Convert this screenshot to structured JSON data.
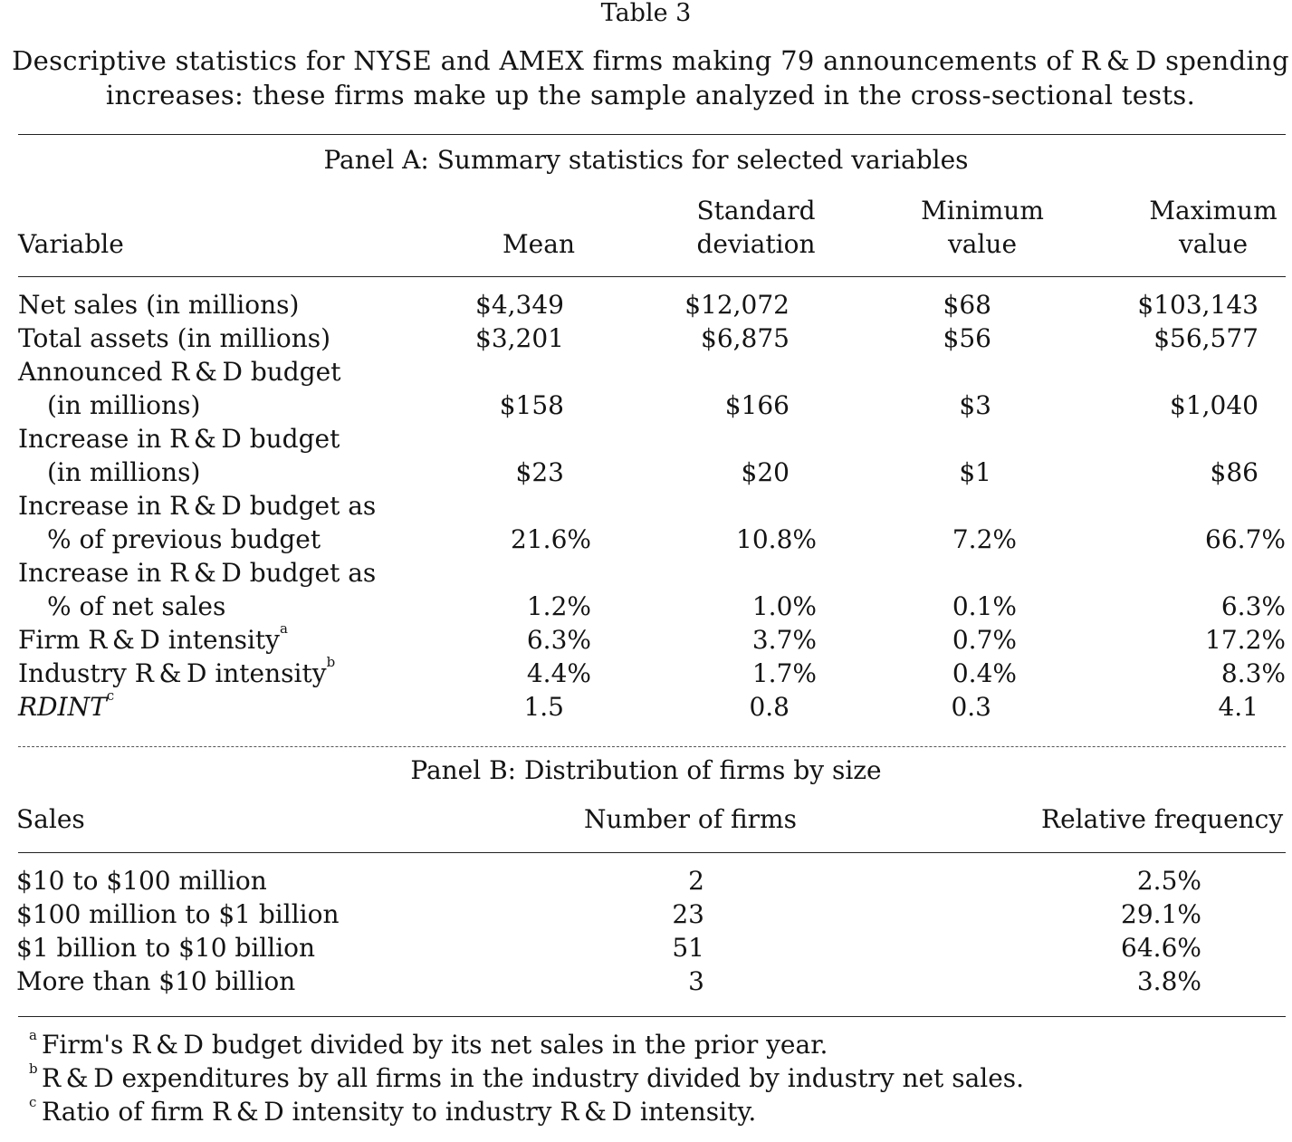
{
  "table_number": "Table 3",
  "caption_line1": "Descriptive statistics for NYSE and AMEX firms making 79 announcements of R & D spending",
  "caption_line2": "increases: these firms make up the sample analyzed in the cross-sectional tests.",
  "panel_a": {
    "title": "Panel A: Summary statistics for selected variables",
    "headers": {
      "variable": "Variable",
      "mean": "Mean",
      "sd_line1": "Standard",
      "sd_line2": "deviation",
      "min_line1": "Minimum",
      "min_line2": "value",
      "max_line1": "Maximum",
      "max_line2": "value"
    },
    "rows": [
      {
        "label": "Net sales (in millions)",
        "mean": "$4,349",
        "sd": "$12,072",
        "min": "$68",
        "max": "$103,143"
      },
      {
        "label": "Total assets (in millions)",
        "mean": "$3,201",
        "sd": "$6,875",
        "min": "$56",
        "max": "$56,577"
      },
      {
        "label": "Announced R & D budget",
        "label2": "(in millions)",
        "mean": "$158",
        "sd": "$166",
        "min": "$3",
        "max": "$1,040"
      },
      {
        "label": "Increase in R & D budget",
        "label2": "(in millions)",
        "mean": "$23",
        "sd": "$20",
        "min": "$1",
        "max": "$86"
      },
      {
        "label": "Increase in R & D budget as",
        "label2": "% of previous budget",
        "mean": "21.6%",
        "sd": "10.8%",
        "min": "7.2%",
        "max": "66.7%"
      },
      {
        "label": "Increase in R & D budget as",
        "label2": "% of net sales",
        "mean": "1.2%",
        "sd": "1.0%",
        "min": "0.1%",
        "max": "6.3%"
      },
      {
        "label": "Firm R & D intensity",
        "sup": "a",
        "mean": "6.3%",
        "sd": "3.7%",
        "min": "0.7%",
        "max": "17.2%"
      },
      {
        "label": "Industry R & D intensity",
        "sup": "b",
        "mean": "4.4%",
        "sd": "1.7%",
        "min": "0.4%",
        "max": "8.3%"
      },
      {
        "label": "RDINT",
        "sup": "c",
        "mean": "1.5",
        "sd": "0.8",
        "min": "0.3",
        "max": "4.1"
      }
    ]
  },
  "panel_b": {
    "title": "Panel B: Distribution of firms by size",
    "headers": {
      "sales": "Sales",
      "number": "Number of firms",
      "frequency": "Relative frequency"
    },
    "rows": [
      {
        "sales": "$10 to $100 million",
        "number": "2",
        "frequency": "2.5%"
      },
      {
        "sales": "$100 million to $1 billion",
        "number": "23",
        "frequency": "29.1%"
      },
      {
        "sales": "$1 billion to $10 billion",
        "number": "51",
        "frequency": "64.6%"
      },
      {
        "sales": "More than $10 billion",
        "number": "3",
        "frequency": "3.8%"
      }
    ]
  },
  "footnotes": [
    {
      "mark": "a",
      "text": "Firm's R & D budget divided by its net sales in the prior year."
    },
    {
      "mark": "b",
      "text": "R & D expenditures by all firms in the industry divided by industry net sales."
    },
    {
      "mark": "c",
      "text": "Ratio of firm R & D intensity to industry R & D intensity."
    }
  ]
}
